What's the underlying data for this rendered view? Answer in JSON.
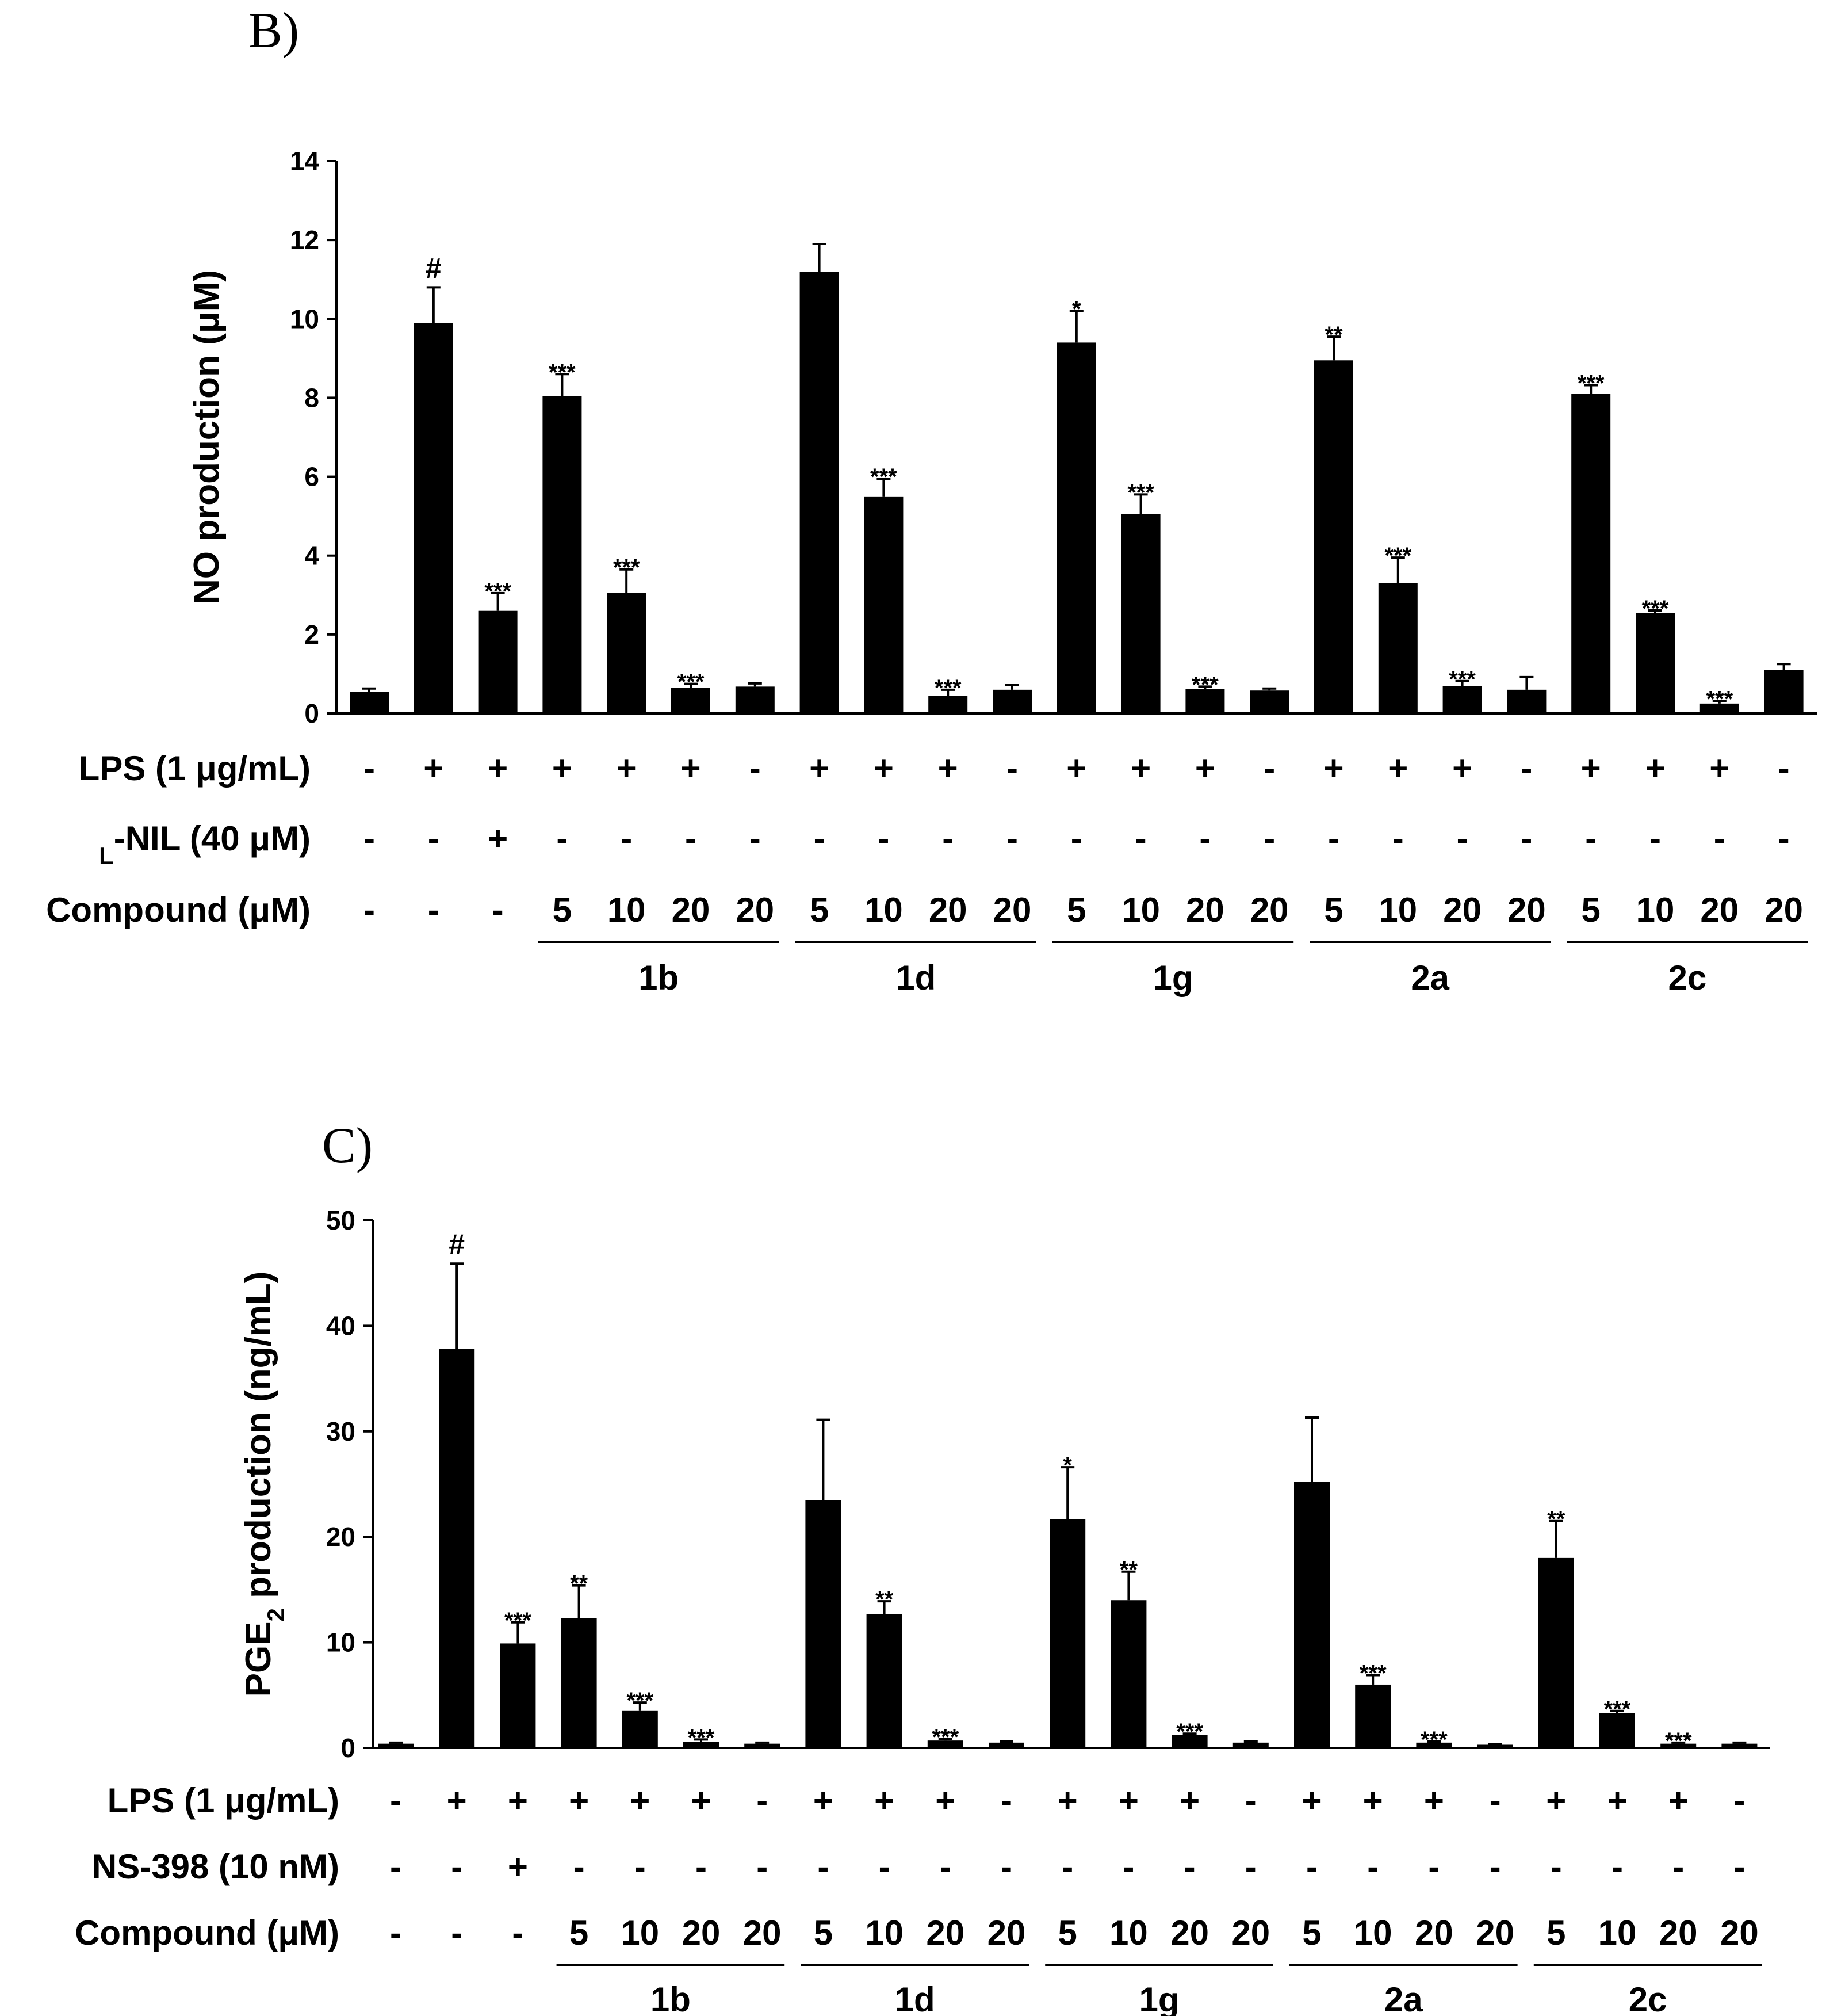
{
  "chart_data": [
    {
      "panel_label": "B)",
      "type": "bar",
      "ylabel": "NO production (μM)",
      "ylim": [
        0,
        14
      ],
      "yticks": [
        0,
        2,
        4,
        6,
        8,
        10,
        12,
        14
      ],
      "values": [
        0.55,
        9.9,
        2.6,
        8.05,
        3.05,
        0.65,
        0.68,
        11.2,
        5.5,
        0.45,
        0.6,
        9.4,
        5.05,
        0.62,
        0.58,
        8.95,
        3.3,
        0.7,
        0.6,
        8.1,
        2.55,
        0.25,
        1.1
      ],
      "errors": [
        0.08,
        0.9,
        0.45,
        0.55,
        0.6,
        0.1,
        0.08,
        0.7,
        0.45,
        0.15,
        0.12,
        0.8,
        0.5,
        0.06,
        0.05,
        0.6,
        0.65,
        0.12,
        0.32,
        0.22,
        0.06,
        0.06,
        0.15
      ],
      "annotations": [
        "",
        "#",
        "***",
        "***",
        "***",
        "***",
        "",
        "",
        "***",
        "***",
        "",
        "*",
        "***",
        "***",
        "",
        "**",
        "***",
        "***",
        "",
        "***",
        "***",
        "***",
        ""
      ],
      "conditions": [
        {
          "name": "LPS (1 μg/mL)",
          "prefix": "",
          "values": [
            "-",
            "+",
            "+",
            "+",
            "+",
            "+",
            "-",
            "+",
            "+",
            "+",
            "-",
            "+",
            "+",
            "+",
            "-",
            "+",
            "+",
            "+",
            "-",
            "+",
            "+",
            "+",
            "-"
          ]
        },
        {
          "name": "-NIL (40 μM)",
          "prefix": "L",
          "values": [
            "-",
            "-",
            "+",
            "-",
            "-",
            "-",
            "-",
            "-",
            "-",
            "-",
            "-",
            "-",
            "-",
            "-",
            "-",
            "-",
            "-",
            "-",
            "-",
            "-",
            "-",
            "-",
            "-"
          ]
        },
        {
          "name": "Compound  (μM)",
          "prefix": "",
          "values": [
            "-",
            "-",
            "-",
            "5",
            "10",
            "20",
            "20",
            "5",
            "10",
            "20",
            "20",
            "5",
            "10",
            "20",
            "20",
            "5",
            "10",
            "20",
            "20",
            "5",
            "10",
            "20",
            "20"
          ]
        }
      ],
      "groups": [
        {
          "name": "1b",
          "start": 3,
          "end": 6
        },
        {
          "name": "1d",
          "start": 7,
          "end": 10
        },
        {
          "name": "1g",
          "start": 11,
          "end": 14
        },
        {
          "name": "2a",
          "start": 15,
          "end": 18
        },
        {
          "name": "2c",
          "start": 19,
          "end": 22
        }
      ]
    },
    {
      "panel_label": "C)",
      "type": "bar",
      "ylabel_main": "PGE",
      "ylabel_sub": "2",
      "ylabel_rest": " production (ng/mL)",
      "ylim": [
        0,
        50
      ],
      "yticks": [
        0,
        10,
        20,
        30,
        40,
        50
      ],
      "values": [
        0.4,
        37.8,
        9.9,
        12.3,
        3.5,
        0.6,
        0.4,
        23.5,
        12.7,
        0.7,
        0.5,
        21.7,
        14.0,
        1.2,
        0.5,
        25.2,
        6.0,
        0.5,
        0.3,
        18.0,
        3.3,
        0.4,
        0.4
      ],
      "errors": [
        0.1,
        8.1,
        2.0,
        3.1,
        0.8,
        0.2,
        0.1,
        7.6,
        1.2,
        0.15,
        0.1,
        4.9,
        2.7,
        0.15,
        0.1,
        6.1,
        0.9,
        0.1,
        0.05,
        3.5,
        0.2,
        0.1,
        0.1
      ],
      "annotations": [
        "",
        "#",
        "***",
        "**",
        "***",
        "***",
        "",
        "",
        "**",
        "***",
        "",
        "*",
        "**",
        "***",
        "",
        "",
        "***",
        "***",
        "",
        "**",
        "***",
        "***",
        ""
      ],
      "conditions": [
        {
          "name": "LPS (1 μg/mL)",
          "prefix": "",
          "values": [
            "-",
            "+",
            "+",
            "+",
            "+",
            "+",
            "-",
            "+",
            "+",
            "+",
            "-",
            "+",
            "+",
            "+",
            "-",
            "+",
            "+",
            "+",
            "-",
            "+",
            "+",
            "+",
            "-"
          ]
        },
        {
          "name": "NS-398 (10 nM)",
          "prefix": "",
          "values": [
            "-",
            "-",
            "+",
            "-",
            "-",
            "-",
            "-",
            "-",
            "-",
            "-",
            "-",
            "-",
            "-",
            "-",
            "-",
            "-",
            "-",
            "-",
            "-",
            "-",
            "-",
            "-",
            "-"
          ]
        },
        {
          "name": "Compound  (μM)",
          "prefix": "",
          "values": [
            "-",
            "-",
            "-",
            "5",
            "10",
            "20",
            "20",
            "5",
            "10",
            "20",
            "20",
            "5",
            "10",
            "20",
            "20",
            "5",
            "10",
            "20",
            "20",
            "5",
            "10",
            "20",
            "20"
          ]
        }
      ],
      "groups": [
        {
          "name": "1b",
          "start": 3,
          "end": 6
        },
        {
          "name": "1d",
          "start": 7,
          "end": 10
        },
        {
          "name": "1g",
          "start": 11,
          "end": 14
        },
        {
          "name": "2a",
          "start": 15,
          "end": 18
        },
        {
          "name": "2c",
          "start": 19,
          "end": 22
        }
      ]
    }
  ]
}
